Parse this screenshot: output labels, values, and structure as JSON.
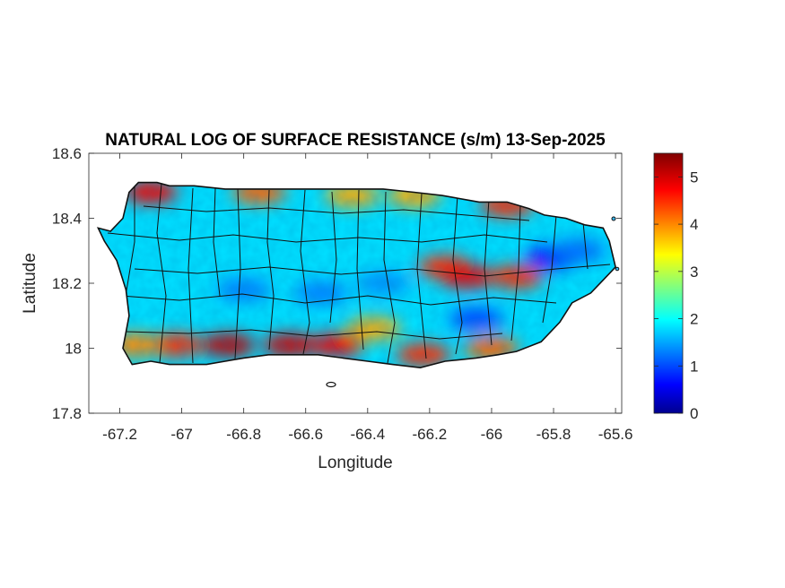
{
  "title": "NATURAL LOG OF SURFACE RESISTANCE (s/m) 13-Sep-2025",
  "xlabel": "Longitude",
  "ylabel": "Latitude",
  "xlim": [
    -67.3,
    -65.58
  ],
  "ylim": [
    17.8,
    18.6
  ],
  "xticks": [
    -67.2,
    -67,
    -66.8,
    -66.6,
    -66.4,
    -66.2,
    -66,
    -65.8,
    -65.6
  ],
  "xtick_labels": [
    "-67.2",
    "-67",
    "-66.8",
    "-66.6",
    "-66.4",
    "-66.2",
    "-66",
    "-65.8",
    "-65.6"
  ],
  "yticks": [
    17.8,
    18,
    18.2,
    18.4,
    18.6
  ],
  "ytick_labels": [
    "17.8",
    "18",
    "18.2",
    "18.4",
    "18.6"
  ],
  "colorbar": {
    "colormap": "jet",
    "range": [
      0,
      5.5
    ],
    "ticks": [
      0,
      1,
      2,
      3,
      4,
      5
    ],
    "tick_labels": [
      "0",
      "1",
      "2",
      "3",
      "4",
      "5"
    ]
  },
  "chart_data": {
    "type": "heatmap",
    "title": "NATURAL LOG OF SURFACE RESISTANCE (s/m) 13-Sep-2025",
    "xlabel": "Longitude",
    "ylabel": "Latitude",
    "xlim": [
      -67.3,
      -65.58
    ],
    "ylim": [
      17.8,
      18.6
    ],
    "value_range": [
      0,
      5.5
    ],
    "colormap": "jet",
    "background_value": 1.8,
    "region_outline_lonlat": [
      [
        -67.27,
        18.37
      ],
      [
        -67.23,
        18.36
      ],
      [
        -67.19,
        18.4
      ],
      [
        -67.17,
        18.48
      ],
      [
        -67.14,
        18.51
      ],
      [
        -67.08,
        18.51
      ],
      [
        -67.04,
        18.5
      ],
      [
        -66.96,
        18.5
      ],
      [
        -66.86,
        18.49
      ],
      [
        -66.75,
        18.49
      ],
      [
        -66.65,
        18.49
      ],
      [
        -66.55,
        18.49
      ],
      [
        -66.45,
        18.49
      ],
      [
        -66.35,
        18.49
      ],
      [
        -66.25,
        18.48
      ],
      [
        -66.16,
        18.47
      ],
      [
        -66.04,
        18.45
      ],
      [
        -65.95,
        18.45
      ],
      [
        -65.88,
        18.43
      ],
      [
        -65.83,
        18.41
      ],
      [
        -65.76,
        18.4
      ],
      [
        -65.7,
        18.38
      ],
      [
        -65.64,
        18.37
      ],
      [
        -65.62,
        18.33
      ],
      [
        -65.6,
        18.25
      ],
      [
        -65.64,
        18.21
      ],
      [
        -65.68,
        18.17
      ],
      [
        -65.74,
        18.14
      ],
      [
        -65.78,
        18.08
      ],
      [
        -65.84,
        18.02
      ],
      [
        -65.92,
        17.99
      ],
      [
        -65.98,
        17.98
      ],
      [
        -66.05,
        17.97
      ],
      [
        -66.15,
        17.96
      ],
      [
        -66.23,
        17.94
      ],
      [
        -66.32,
        17.95
      ],
      [
        -66.4,
        17.96
      ],
      [
        -66.48,
        17.97
      ],
      [
        -66.56,
        17.98
      ],
      [
        -66.64,
        17.98
      ],
      [
        -66.72,
        17.98
      ],
      [
        -66.8,
        17.97
      ],
      [
        -66.86,
        17.96
      ],
      [
        -66.92,
        17.95
      ],
      [
        -66.98,
        17.95
      ],
      [
        -67.04,
        17.95
      ],
      [
        -67.1,
        17.96
      ],
      [
        -67.16,
        17.95
      ],
      [
        -67.19,
        18.0
      ],
      [
        -67.17,
        18.1
      ],
      [
        -67.18,
        18.18
      ],
      [
        -67.21,
        18.27
      ],
      [
        -67.25,
        18.33
      ]
    ],
    "value_features": [
      {
        "lon": -66.85,
        "lat": 18.01,
        "value": 5.1
      },
      {
        "lon": -66.65,
        "lat": 18.01,
        "value": 5.0
      },
      {
        "lon": -66.5,
        "lat": 18.01,
        "value": 4.8
      },
      {
        "lon": -67.02,
        "lat": 18.01,
        "value": 4.5
      },
      {
        "lon": -67.15,
        "lat": 18.01,
        "value": 4.0
      },
      {
        "lon": -66.22,
        "lat": 17.98,
        "value": 4.5
      },
      {
        "lon": -66.0,
        "lat": 18.0,
        "value": 4.2
      },
      {
        "lon": -67.1,
        "lat": 18.48,
        "value": 4.8
      },
      {
        "lon": -66.75,
        "lat": 18.48,
        "value": 4.2
      },
      {
        "lon": -66.45,
        "lat": 18.47,
        "value": 3.8
      },
      {
        "lon": -66.25,
        "lat": 18.47,
        "value": 3.8
      },
      {
        "lon": -65.95,
        "lat": 18.44,
        "value": 4.5
      },
      {
        "lon": -66.15,
        "lat": 18.25,
        "value": 4.5
      },
      {
        "lon": -66.08,
        "lat": 18.22,
        "value": 4.8
      },
      {
        "lon": -65.92,
        "lat": 18.22,
        "value": 4.5
      },
      {
        "lon": -66.38,
        "lat": 18.06,
        "value": 3.8
      },
      {
        "lon": -65.8,
        "lat": 18.28,
        "value": 0.6
      },
      {
        "lon": -65.72,
        "lat": 18.3,
        "value": 1.2
      },
      {
        "lon": -66.05,
        "lat": 18.09,
        "value": 1.0
      },
      {
        "lon": -66.8,
        "lat": 18.18,
        "value": 1.3
      },
      {
        "lon": -66.55,
        "lat": 18.17,
        "value": 1.3
      },
      {
        "lon": -66.35,
        "lat": 18.2,
        "value": 1.4
      }
    ]
  }
}
